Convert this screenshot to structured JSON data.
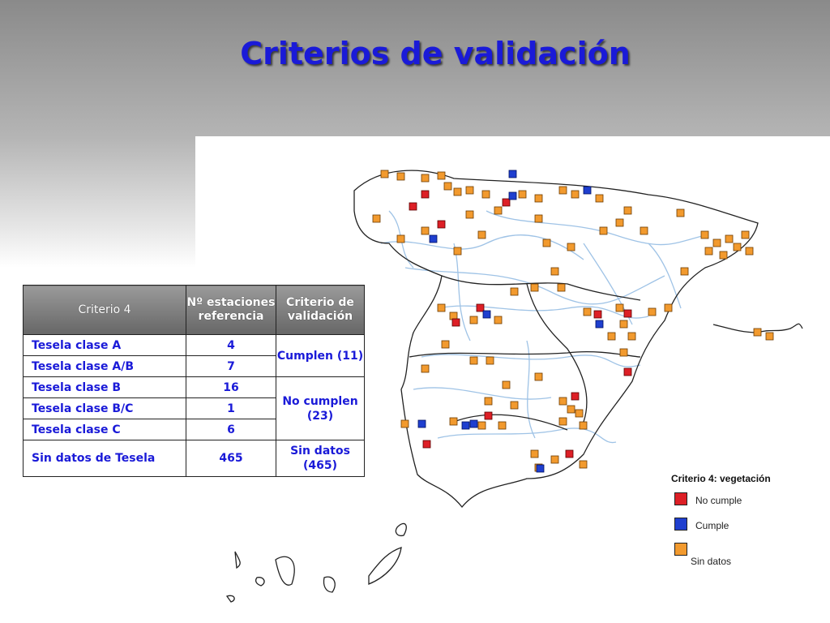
{
  "title": "Criterios de validación",
  "table": {
    "headers": [
      "Criterio 4",
      "Nº estaciones referencia",
      "Criterio de validación"
    ],
    "rows": [
      {
        "label": "Tesela clase A",
        "count": "4"
      },
      {
        "label": "Tesela clase A/B",
        "count": "7"
      },
      {
        "label": "Tesela clase B",
        "count": "16"
      },
      {
        "label": "Tesela clase B/C",
        "count": "1"
      },
      {
        "label": "Tesela clase C",
        "count": "6"
      },
      {
        "label": "Sin datos de Tesela",
        "count": "465"
      }
    ],
    "groups": {
      "cumplen": "Cumplen (11)",
      "no_cumplen": "No cumplen (23)",
      "sin_datos": "Sin datos (465)"
    }
  },
  "legend": {
    "title": "Criterio 4: vegetación",
    "items": [
      {
        "label": "No cumple",
        "color": "#dd1f26"
      },
      {
        "label": "Cumple",
        "color": "#1f3fcf"
      },
      {
        "label": "Sin datos",
        "color": "#f29a2e"
      }
    ]
  },
  "colors": {
    "title": "#1a1ad8",
    "rivers": "#9fc3e6",
    "borders": "#222222"
  }
}
